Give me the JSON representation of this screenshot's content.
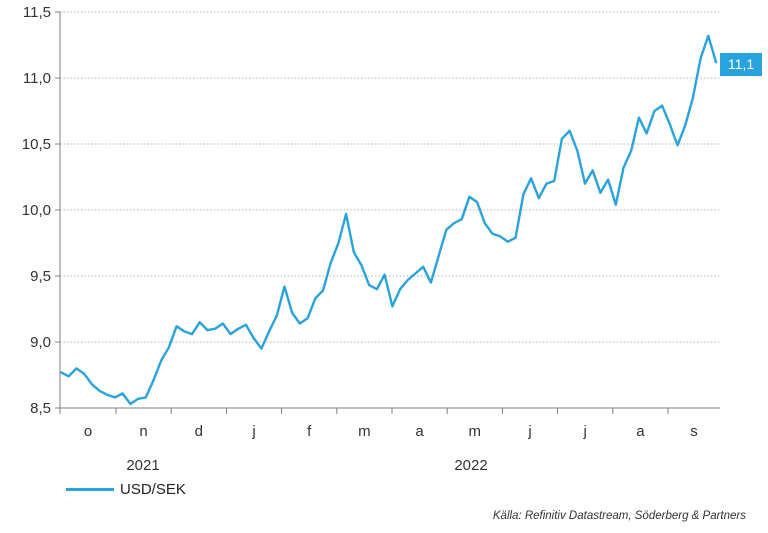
{
  "chart_data": {
    "type": "line",
    "title": "",
    "xlabel": "",
    "ylabel": "",
    "ylim": [
      8.5,
      11.5
    ],
    "yticks": [
      "8,5",
      "9,0",
      "9,5",
      "10,0",
      "10,5",
      "11,0",
      "11,5"
    ],
    "ytick_values": [
      8.5,
      9.0,
      9.5,
      10.0,
      10.5,
      11.0,
      11.5
    ],
    "month_labels": [
      "o",
      "n",
      "d",
      "j",
      "f",
      "m",
      "a",
      "m",
      "j",
      "j",
      "a",
      "s"
    ],
    "year_labels": [
      "2021",
      "2022"
    ],
    "grid": true,
    "legend_position": "bottom-left",
    "series": [
      {
        "name": "USD/SEK",
        "color": "#29a3dd",
        "x_start": "2021-09-13",
        "x_step_days": 7,
        "values": [
          8.77,
          8.74,
          8.8,
          8.76,
          8.68,
          8.63,
          8.6,
          8.58,
          8.61,
          8.53,
          8.57,
          8.58,
          8.71,
          8.86,
          8.96,
          9.12,
          9.08,
          9.06,
          9.15,
          9.09,
          9.1,
          9.14,
          9.06,
          9.1,
          9.13,
          9.03,
          8.95,
          9.08,
          9.2,
          9.42,
          9.22,
          9.14,
          9.18,
          9.33,
          9.39,
          9.6,
          9.75,
          9.97,
          9.68,
          9.58,
          9.43,
          9.4,
          9.51,
          9.27,
          9.4,
          9.47,
          9.52,
          9.57,
          9.45,
          9.65,
          9.85,
          9.9,
          9.93,
          10.1,
          10.06,
          9.9,
          9.82,
          9.8,
          9.76,
          9.79,
          10.12,
          10.24,
          10.09,
          10.2,
          10.22,
          10.54,
          10.6,
          10.45,
          10.2,
          10.3,
          10.13,
          10.23,
          10.04,
          10.32,
          10.45,
          10.7,
          10.58,
          10.75,
          10.79,
          10.65,
          10.49,
          10.64,
          10.85,
          11.15,
          11.32,
          11.12
        ]
      }
    ],
    "last_value_label": "11,1"
  },
  "source": "Källa: Refinitiv Datastream, Söderberg & Partners"
}
